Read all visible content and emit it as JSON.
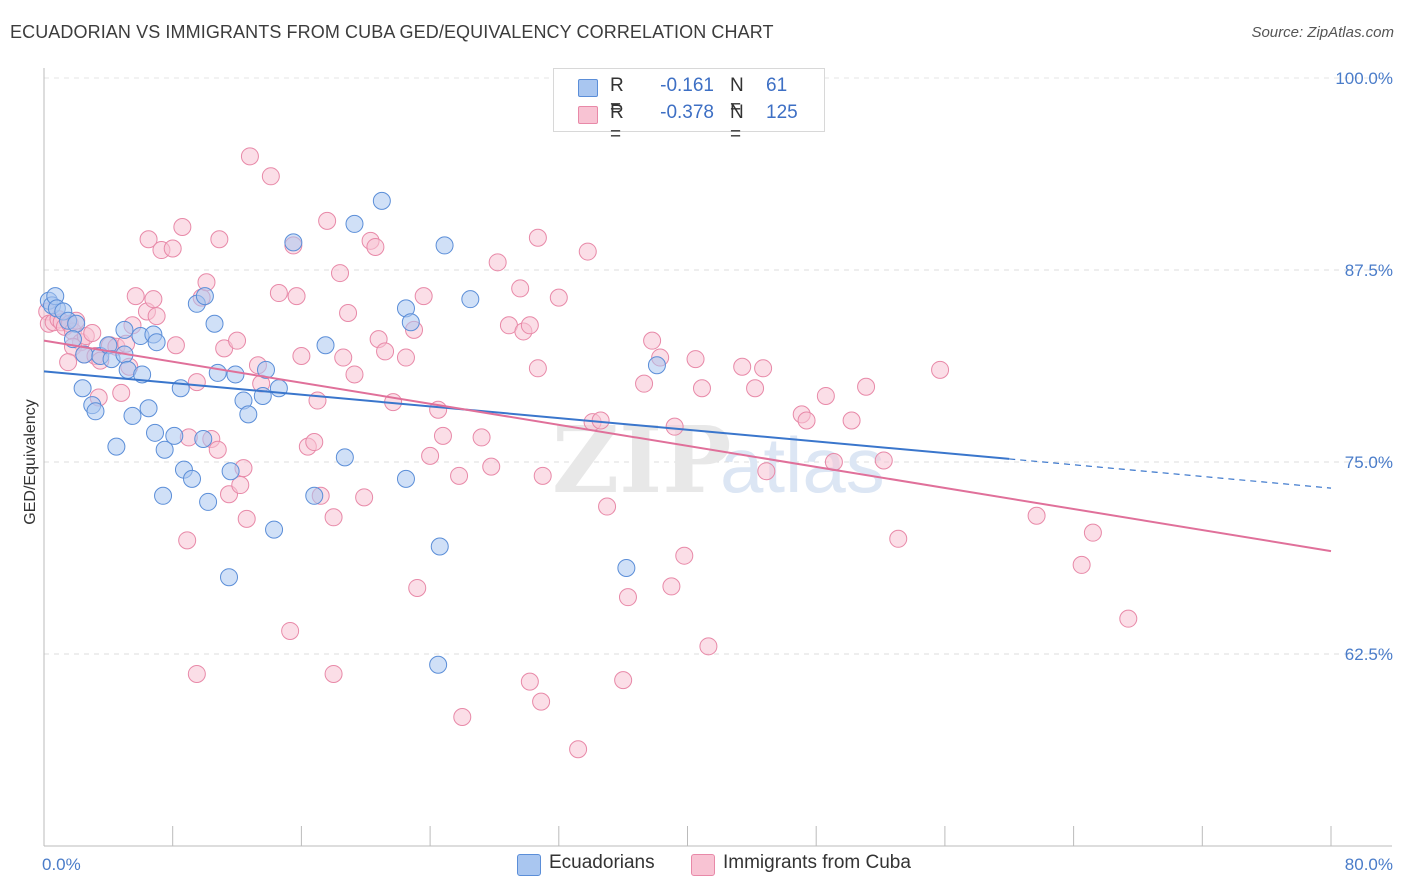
{
  "title": "ECUADORIAN VS IMMIGRANTS FROM CUBA GED/EQUIVALENCY CORRELATION CHART",
  "source": "Source: ZipAtlas.com",
  "watermark": "ZIPatlas",
  "legend": {
    "rows": [
      {
        "r_label": "R =",
        "r_value": "-0.161",
        "n_label": "N =",
        "n_value": "61",
        "color": "#a9c6f0",
        "border": "#5b8ed8"
      },
      {
        "r_label": "R =",
        "r_value": "-0.378",
        "n_label": "N =",
        "n_value": "125",
        "color": "#f8c3d3",
        "border": "#e889a8"
      }
    ]
  },
  "bottom_legend": [
    {
      "label": "Ecuadorians",
      "color": "#a9c6f0",
      "border": "#5b8ed8"
    },
    {
      "label": "Immigrants from Cuba",
      "color": "#f8c3d3",
      "border": "#e889a8"
    }
  ],
  "chart_data": {
    "type": "scatter",
    "title": "ECUADORIAN VS IMMIGRANTS FROM CUBA GED/EQUIVALENCY CORRELATION CHART",
    "xlabel": "",
    "ylabel": "GED/Equivalency",
    "x_tick_labels": [
      "0.0%",
      "80.0%"
    ],
    "y_tick_labels": [
      "100.0%",
      "87.5%",
      "75.0%",
      "62.5%"
    ],
    "y_ticks": [
      100.0,
      87.5,
      75.0,
      62.5
    ],
    "xlim": [
      0,
      80
    ],
    "ylim": [
      50.0,
      100.0
    ],
    "grid": true,
    "series": [
      {
        "name": "Ecuadorians",
        "color": "#5b8ed8",
        "fill": "#a9c6f0",
        "trend": {
          "x0": 0,
          "y0": 80.9,
          "x1": 60,
          "y1": 75.2,
          "x_dash_end": 80,
          "y_dash_end": 73.3
        },
        "points": [
          [
            0.3,
            85.5
          ],
          [
            0.5,
            85.2
          ],
          [
            0.7,
            85.8
          ],
          [
            0.8,
            85.0
          ],
          [
            1.2,
            84.8
          ],
          [
            1.5,
            84.2
          ],
          [
            2.0,
            84.0
          ],
          [
            1.8,
            83.0
          ],
          [
            2.5,
            82.0
          ],
          [
            3.5,
            81.9
          ],
          [
            4.0,
            82.6
          ],
          [
            4.2,
            81.7
          ],
          [
            5.0,
            83.6
          ],
          [
            5.0,
            82.0
          ],
          [
            5.2,
            81.0
          ],
          [
            6.0,
            83.2
          ],
          [
            6.1,
            80.7
          ],
          [
            6.8,
            83.3
          ],
          [
            7.0,
            82.8
          ],
          [
            2.4,
            79.8
          ],
          [
            3.0,
            78.7
          ],
          [
            3.2,
            78.3
          ],
          [
            5.5,
            78.0
          ],
          [
            6.5,
            78.5
          ],
          [
            4.5,
            76.0
          ],
          [
            6.9,
            76.9
          ],
          [
            7.5,
            75.8
          ],
          [
            8.1,
            76.7
          ],
          [
            8.5,
            79.8
          ],
          [
            9.5,
            85.3
          ],
          [
            10.0,
            85.8
          ],
          [
            10.6,
            84.0
          ],
          [
            10.8,
            80.8
          ],
          [
            9.9,
            76.5
          ],
          [
            8.7,
            74.5
          ],
          [
            9.2,
            73.9
          ],
          [
            10.2,
            72.4
          ],
          [
            7.4,
            72.8
          ],
          [
            11.6,
            74.4
          ],
          [
            11.9,
            80.7
          ],
          [
            12.4,
            79.0
          ],
          [
            12.7,
            78.1
          ],
          [
            13.8,
            81.0
          ],
          [
            13.6,
            79.3
          ],
          [
            14.6,
            79.8
          ],
          [
            14.3,
            70.6
          ],
          [
            11.5,
            67.5
          ],
          [
            15.5,
            89.3
          ],
          [
            16.8,
            72.8
          ],
          [
            17.5,
            82.6
          ],
          [
            18.7,
            75.3
          ],
          [
            19.3,
            90.5
          ],
          [
            21.0,
            92.0
          ],
          [
            22.5,
            85.0
          ],
          [
            22.8,
            84.1
          ],
          [
            22.5,
            73.9
          ],
          [
            24.6,
            69.5
          ],
          [
            24.9,
            89.1
          ],
          [
            26.5,
            85.6
          ],
          [
            36.2,
            68.1
          ],
          [
            38.1,
            81.3
          ],
          [
            24.5,
            61.8
          ]
        ]
      },
      {
        "name": "Immigrants from Cuba",
        "color": "#e889a8",
        "fill": "#f8c3d3",
        "trend": {
          "x0": 0,
          "y0": 82.9,
          "x1": 80,
          "y1": 69.2
        },
        "points": [
          [
            0.2,
            84.8
          ],
          [
            0.3,
            84.0
          ],
          [
            0.6,
            84.1
          ],
          [
            0.9,
            84.3
          ],
          [
            1.1,
            84.1
          ],
          [
            1.3,
            83.8
          ],
          [
            1.6,
            84.0
          ],
          [
            1.8,
            83.5
          ],
          [
            2.0,
            84.2
          ],
          [
            2.3,
            82.8
          ],
          [
            2.6,
            83.2
          ],
          [
            3.0,
            83.4
          ],
          [
            1.8,
            82.5
          ],
          [
            2.5,
            82.0
          ],
          [
            3.2,
            81.9
          ],
          [
            3.5,
            81.6
          ],
          [
            1.5,
            81.5
          ],
          [
            4.1,
            82.6
          ],
          [
            4.5,
            82.5
          ],
          [
            5.1,
            82.7
          ],
          [
            5.5,
            83.9
          ],
          [
            5.3,
            81.2
          ],
          [
            4.8,
            79.5
          ],
          [
            3.4,
            79.2
          ],
          [
            5.7,
            85.8
          ],
          [
            6.4,
            84.8
          ],
          [
            6.8,
            85.6
          ],
          [
            7.0,
            84.5
          ],
          [
            6.5,
            89.5
          ],
          [
            7.3,
            88.8
          ],
          [
            8.0,
            88.9
          ],
          [
            8.2,
            82.6
          ],
          [
            8.6,
            90.3
          ],
          [
            9.5,
            80.2
          ],
          [
            9.0,
            76.6
          ],
          [
            9.8,
            85.7
          ],
          [
            10.1,
            86.7
          ],
          [
            10.4,
            76.5
          ],
          [
            10.8,
            75.8
          ],
          [
            10.9,
            89.5
          ],
          [
            11.2,
            82.4
          ],
          [
            11.5,
            72.9
          ],
          [
            12.2,
            73.5
          ],
          [
            12.6,
            71.3
          ],
          [
            12.4,
            74.6
          ],
          [
            12.0,
            82.9
          ],
          [
            13.3,
            81.3
          ],
          [
            13.5,
            80.1
          ],
          [
            14.1,
            93.6
          ],
          [
            14.6,
            86.0
          ],
          [
            15.5,
            89.1
          ],
          [
            15.7,
            85.8
          ],
          [
            16.0,
            81.9
          ],
          [
            16.4,
            76.0
          ],
          [
            16.8,
            76.3
          ],
          [
            17.0,
            79.0
          ],
          [
            17.2,
            72.8
          ],
          [
            17.6,
            90.7
          ],
          [
            18.0,
            71.4
          ],
          [
            18.4,
            87.3
          ],
          [
            18.6,
            81.8
          ],
          [
            18.9,
            84.7
          ],
          [
            19.3,
            80.7
          ],
          [
            19.9,
            72.7
          ],
          [
            20.3,
            89.4
          ],
          [
            20.6,
            89.0
          ],
          [
            20.8,
            83.0
          ],
          [
            21.2,
            82.2
          ],
          [
            21.7,
            78.9
          ],
          [
            22.5,
            81.8
          ],
          [
            23.0,
            83.6
          ],
          [
            23.6,
            85.8
          ],
          [
            24.0,
            75.4
          ],
          [
            24.5,
            78.4
          ],
          [
            24.8,
            76.7
          ],
          [
            25.8,
            74.1
          ],
          [
            26.0,
            58.4
          ],
          [
            27.2,
            76.6
          ],
          [
            27.8,
            74.7
          ],
          [
            28.2,
            88.0
          ],
          [
            28.9,
            83.9
          ],
          [
            29.8,
            83.5
          ],
          [
            30.2,
            83.9
          ],
          [
            30.7,
            81.1
          ],
          [
            31.0,
            74.1
          ],
          [
            30.7,
            89.6
          ],
          [
            32.0,
            85.7
          ],
          [
            33.2,
            56.3
          ],
          [
            33.8,
            88.7
          ],
          [
            34.1,
            77.6
          ],
          [
            34.6,
            77.7
          ],
          [
            35.0,
            72.1
          ],
          [
            36.0,
            60.8
          ],
          [
            36.3,
            66.2
          ],
          [
            37.3,
            80.1
          ],
          [
            37.8,
            82.9
          ],
          [
            38.3,
            81.8
          ],
          [
            39.2,
            77.3
          ],
          [
            39.0,
            66.9
          ],
          [
            39.8,
            68.9
          ],
          [
            40.5,
            81.7
          ],
          [
            40.9,
            79.8
          ],
          [
            41.3,
            63.0
          ],
          [
            43.4,
            81.2
          ],
          [
            44.2,
            79.8
          ],
          [
            44.7,
            81.1
          ],
          [
            44.9,
            74.4
          ],
          [
            47.1,
            78.1
          ],
          [
            47.4,
            77.7
          ],
          [
            48.6,
            79.3
          ],
          [
            49.1,
            75.0
          ],
          [
            50.2,
            77.7
          ],
          [
            51.1,
            79.9
          ],
          [
            52.2,
            75.1
          ],
          [
            53.1,
            70.0
          ],
          [
            55.7,
            81.0
          ],
          [
            61.7,
            71.5
          ],
          [
            64.5,
            68.3
          ],
          [
            65.2,
            70.4
          ],
          [
            67.4,
            64.8
          ],
          [
            12.8,
            94.9
          ],
          [
            9.5,
            61.2
          ],
          [
            18.0,
            61.2
          ],
          [
            30.2,
            60.7
          ],
          [
            30.9,
            59.4
          ],
          [
            29.6,
            86.3
          ],
          [
            15.3,
            64.0
          ],
          [
            23.2,
            66.8
          ],
          [
            8.9,
            69.9
          ]
        ]
      }
    ]
  }
}
